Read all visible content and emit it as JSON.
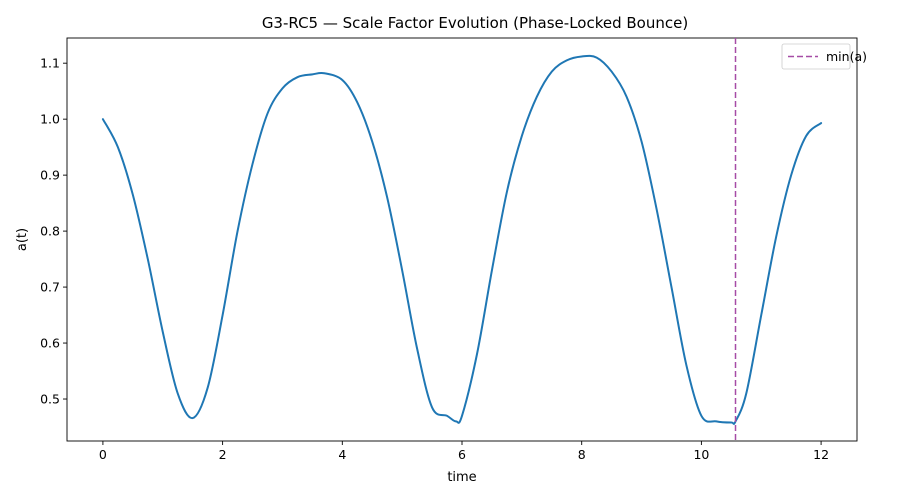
{
  "chart_data": {
    "type": "line",
    "title": "G3-RC5 — Scale Factor Evolution (Phase-Locked Bounce)",
    "xlabel": "time",
    "ylabel": "a(t)",
    "xlim": [
      -0.6,
      12.6
    ],
    "ylim": [
      0.425,
      1.145
    ],
    "xticks": [
      0,
      2,
      4,
      6,
      8,
      10,
      12
    ],
    "yticks": [
      0.5,
      0.6,
      0.7,
      0.8,
      0.9,
      1.0,
      1.1
    ],
    "xtick_labels": [
      "0",
      "2",
      "4",
      "6",
      "8",
      "10",
      "12"
    ],
    "ytick_labels": [
      "0.5",
      "0.6",
      "0.7",
      "0.8",
      "0.9",
      "1.0",
      "1.1"
    ],
    "grid": false,
    "legend_position": "top-right",
    "series": [
      {
        "color": "#1f77b4",
        "x": [
          0.0,
          0.25,
          0.5,
          0.75,
          1.0,
          1.25,
          1.5,
          1.75,
          2.0,
          2.25,
          2.5,
          2.75,
          3.0,
          3.25,
          3.5,
          3.7,
          4.0,
          4.25,
          4.5,
          4.75,
          5.0,
          5.25,
          5.5,
          5.75,
          5.9,
          6.0,
          6.25,
          6.5,
          6.75,
          7.0,
          7.25,
          7.5,
          7.75,
          8.0,
          8.25,
          8.5,
          8.75,
          9.0,
          9.25,
          9.5,
          9.75,
          10.0,
          10.25,
          10.5,
          10.57,
          10.75,
          11.0,
          11.25,
          11.5,
          11.75,
          12.0
        ],
        "y": [
          1.0,
          0.95,
          0.865,
          0.75,
          0.62,
          0.51,
          0.466,
          0.52,
          0.65,
          0.8,
          0.92,
          1.01,
          1.055,
          1.075,
          1.08,
          1.082,
          1.07,
          1.03,
          0.96,
          0.86,
          0.73,
          0.59,
          0.485,
          0.47,
          0.46,
          0.47,
          0.58,
          0.73,
          0.87,
          0.97,
          1.04,
          1.085,
          1.105,
          1.112,
          1.11,
          1.085,
          1.04,
          0.96,
          0.84,
          0.7,
          0.56,
          0.47,
          0.46,
          0.458,
          0.46,
          0.51,
          0.65,
          0.79,
          0.9,
          0.97,
          0.993
        ]
      }
    ],
    "reference_lines": [
      {
        "orientation": "vertical",
        "x": 10.57,
        "label": "min(a)",
        "color": "#a64ca6",
        "style": "dashed"
      }
    ]
  }
}
